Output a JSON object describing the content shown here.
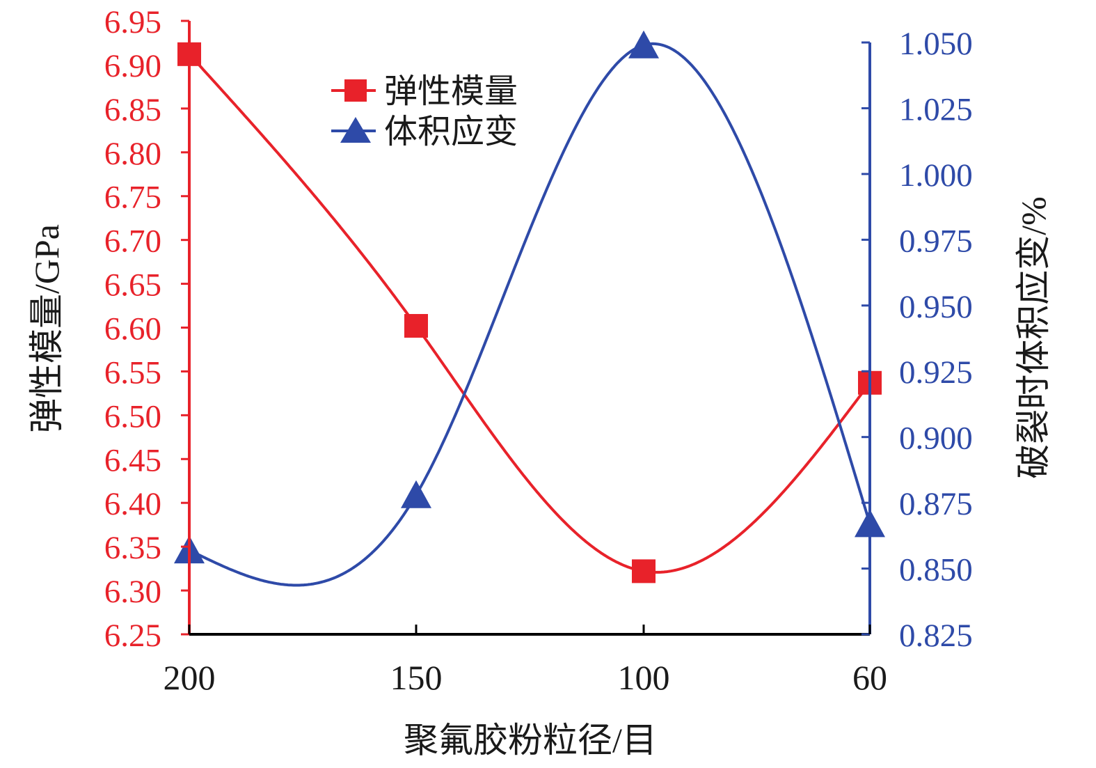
{
  "chart_data": {
    "type": "line",
    "xlabel": "聚氟胶粉粒径/目",
    "y_left_label": "弹性模量/GPa",
    "y_right_label": "破裂时体积应变/%",
    "categories": [
      "200",
      "150",
      "100",
      "60"
    ],
    "y_left_range": [
      6.25,
      6.95
    ],
    "y_left_ticks": [
      "6.25",
      "6.30",
      "6.35",
      "6.40",
      "6.45",
      "6.50",
      "6.55",
      "6.60",
      "6.65",
      "6.70",
      "6.75",
      "6.80",
      "6.85",
      "6.90",
      "6.95"
    ],
    "y_right_range": [
      0.825,
      1.05
    ],
    "y_right_ticks": [
      "0.825",
      "0.850",
      "0.875",
      "0.900",
      "0.925",
      "0.950",
      "0.975",
      "1.000",
      "1.025",
      "1.050"
    ],
    "legend_position": "top-center",
    "series": [
      {
        "name": "弹性模量",
        "axis": "left",
        "marker": "square",
        "color": "#e8222a",
        "values": [
          6.912,
          6.602,
          6.322,
          6.537
        ]
      },
      {
        "name": "体积应变",
        "axis": "right",
        "marker": "triangle",
        "color": "#2e4aa8",
        "values": [
          0.857,
          0.878,
          1.049,
          0.867
        ]
      }
    ],
    "colors": {
      "left_axis": "#e8222a",
      "right_axis": "#2e4aa8",
      "x_axis": "#000000"
    }
  }
}
